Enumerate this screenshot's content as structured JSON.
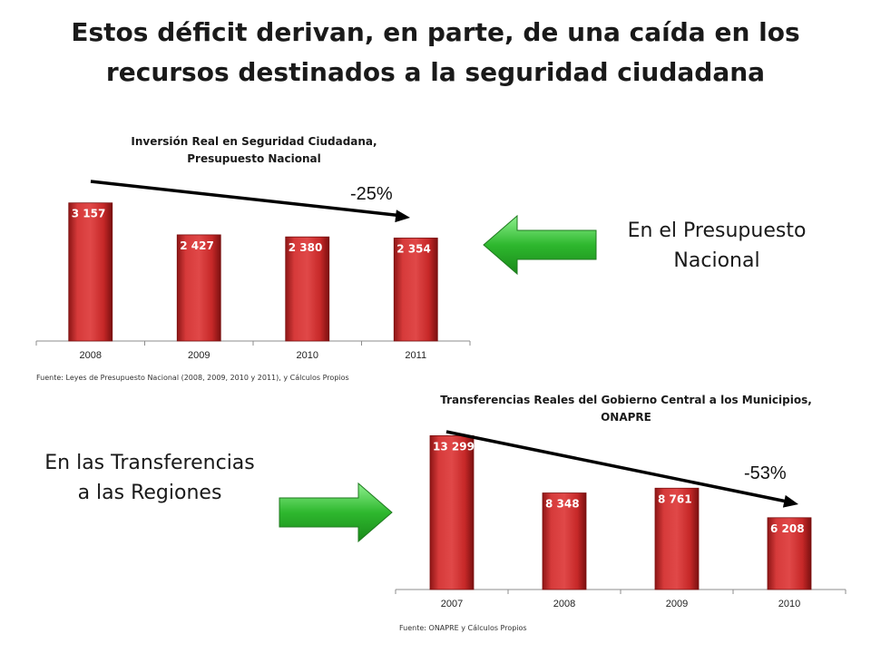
{
  "slide": {
    "title": "Estos déficit derivan, en parte, de una caída en los recursos destinados a la seguridad ciudadana"
  },
  "colors": {
    "bar": "#c62828",
    "bar_dark": "#8e1616",
    "arrow_green": "#2eb82e",
    "trend_line": "#000000"
  },
  "chart_data": [
    {
      "type": "bar",
      "title_line1": "Inversión  Real en Seguridad Ciudadana,",
      "title_line2": "Presupuesto Nacional",
      "categories": [
        "2008",
        "2009",
        "2010",
        "2011"
      ],
      "values": [
        3157,
        2427,
        2380,
        2354
      ],
      "value_labels": [
        "3 157",
        "2 427",
        "2 380",
        "2 354"
      ],
      "ylim": [
        0,
        3400
      ],
      "annotation": "-25%",
      "source": "Fuente: Leyes de Presupuesto Nacional (2008, 2009, 2010 y 2011), y Cálculos Propios"
    },
    {
      "type": "bar",
      "title_line1": "Transferencias Reales del Gobierno Central a los Municipios,",
      "title_line2": "ONAPRE",
      "categories": [
        "2007",
        "2008",
        "2009",
        "2010"
      ],
      "values": [
        13299,
        8348,
        8761,
        6208
      ],
      "value_labels": [
        "13 299",
        "8 348",
        "8 761",
        "6 208"
      ],
      "ylim": [
        0,
        13800
      ],
      "annotation": "-53%",
      "source": "Fuente: ONAPRE y Cálculos Propios"
    }
  ],
  "labels": {
    "presupuesto": "En el Presupuesto Nacional",
    "transferencias": "En las Transferencias  a las Regiones"
  },
  "icons": {
    "left_arrow": "left-arrow-icon",
    "right_arrow": "right-arrow-icon"
  }
}
